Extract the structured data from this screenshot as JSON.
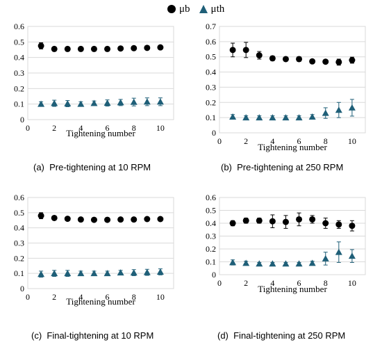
{
  "legend": {
    "items": [
      {
        "label": "μb",
        "marker": "circle",
        "color": "#000000"
      },
      {
        "label": "μth",
        "marker": "triangle",
        "color": "#1f5f78"
      }
    ]
  },
  "captions": {
    "a": "(a)  Pre-tightening at 10 RPM",
    "b": "(b)  Pre-tightening at 250 RPM",
    "c": "(c)  Final-tightening at 10 RPM",
    "d": "(d)  Final-tightening at 250 RPM"
  },
  "chart_data": [
    {
      "id": "a",
      "type": "scatter",
      "caption": "(a)  Pre-tightening at 10 RPM",
      "xlabel": "Tightening number",
      "ylabel": "",
      "xlim": [
        0,
        11
      ],
      "ylim": [
        0,
        0.6
      ],
      "xticks": [
        0,
        2,
        4,
        6,
        8,
        10
      ],
      "yticks": [
        0,
        0.1,
        0.2,
        0.3,
        0.4,
        0.5,
        0.6
      ],
      "grid": true,
      "x": [
        1,
        2,
        3,
        4,
        5,
        6,
        7,
        8,
        9,
        10
      ],
      "series": [
        {
          "name": "μb",
          "marker": "circle",
          "color": "#000000",
          "values": [
            0.475,
            0.455,
            0.455,
            0.455,
            0.455,
            0.455,
            0.458,
            0.46,
            0.462,
            0.465
          ],
          "errors": [
            0.02,
            0.01,
            0.008,
            0.008,
            0.008,
            0.008,
            0.008,
            0.01,
            0.012,
            0.012
          ]
        },
        {
          "name": "μth",
          "marker": "triangle",
          "color": "#1f5f78",
          "values": [
            0.1,
            0.105,
            0.103,
            0.1,
            0.105,
            0.107,
            0.11,
            0.113,
            0.115,
            0.115
          ],
          "errors": [
            0.015,
            0.02,
            0.02,
            0.015,
            0.015,
            0.02,
            0.02,
            0.025,
            0.025,
            0.025
          ]
        }
      ]
    },
    {
      "id": "b",
      "type": "scatter",
      "caption": "(b)  Pre-tightening at 250 RPM",
      "xlabel": "Tightening number",
      "ylabel": "",
      "xlim": [
        0,
        11
      ],
      "ylim": [
        0,
        0.7
      ],
      "xticks": [
        0,
        2,
        4,
        6,
        8,
        10
      ],
      "yticks": [
        0,
        0.1,
        0.2,
        0.3,
        0.4,
        0.5,
        0.6,
        0.7
      ],
      "grid": true,
      "x": [
        1,
        2,
        3,
        4,
        5,
        6,
        7,
        8,
        9,
        10
      ],
      "series": [
        {
          "name": "μb",
          "marker": "circle",
          "color": "#000000",
          "values": [
            0.545,
            0.545,
            0.51,
            0.49,
            0.485,
            0.485,
            0.47,
            0.468,
            0.465,
            0.478
          ],
          "errors": [
            0.045,
            0.05,
            0.025,
            0.015,
            0.01,
            0.015,
            0.01,
            0.01,
            0.02,
            0.02
          ]
        },
        {
          "name": "μth",
          "marker": "triangle",
          "color": "#1f5f78",
          "values": [
            0.105,
            0.1,
            0.1,
            0.1,
            0.1,
            0.1,
            0.105,
            0.13,
            0.15,
            0.165
          ],
          "errors": [
            0.015,
            0.012,
            0.012,
            0.012,
            0.012,
            0.012,
            0.015,
            0.035,
            0.05,
            0.055
          ]
        }
      ]
    },
    {
      "id": "c",
      "type": "scatter",
      "caption": "(c)  Final-tightening at 10 RPM",
      "xlabel": "Tightening number",
      "ylabel": "",
      "xlim": [
        0,
        11
      ],
      "ylim": [
        0,
        0.6
      ],
      "xticks": [
        0,
        2,
        4,
        6,
        8,
        10
      ],
      "yticks": [
        0,
        0.1,
        0.2,
        0.3,
        0.4,
        0.5,
        0.6
      ],
      "grid": true,
      "x": [
        1,
        2,
        3,
        4,
        5,
        6,
        7,
        8,
        9,
        10
      ],
      "series": [
        {
          "name": "μb",
          "marker": "circle",
          "color": "#000000",
          "values": [
            0.48,
            0.465,
            0.46,
            0.455,
            0.453,
            0.453,
            0.455,
            0.455,
            0.458,
            0.458
          ],
          "errors": [
            0.02,
            0.01,
            0.008,
            0.008,
            0.008,
            0.008,
            0.008,
            0.008,
            0.01,
            0.01
          ]
        },
        {
          "name": "μth",
          "marker": "triangle",
          "color": "#1f5f78",
          "values": [
            0.095,
            0.1,
            0.1,
            0.1,
            0.1,
            0.1,
            0.105,
            0.105,
            0.107,
            0.11
          ],
          "errors": [
            0.02,
            0.02,
            0.02,
            0.015,
            0.015,
            0.015,
            0.015,
            0.02,
            0.02,
            0.02
          ]
        }
      ]
    },
    {
      "id": "d",
      "type": "scatter",
      "caption": "(d)  Final-tightening at 250 RPM",
      "xlabel": "Tightening number",
      "ylabel": "",
      "xlim": [
        0,
        11
      ],
      "ylim": [
        0,
        0.6
      ],
      "xticks": [
        0,
        2,
        4,
        6,
        8,
        10
      ],
      "yticks": [
        0,
        0.1,
        0.2,
        0.3,
        0.4,
        0.5,
        0.6
      ],
      "grid": true,
      "x": [
        1,
        2,
        3,
        4,
        5,
        6,
        7,
        8,
        9,
        10
      ],
      "series": [
        {
          "name": "μb",
          "marker": "circle",
          "color": "#000000",
          "values": [
            0.4,
            0.42,
            0.42,
            0.415,
            0.41,
            0.43,
            0.43,
            0.4,
            0.39,
            0.38
          ],
          "errors": [
            0.02,
            0.02,
            0.02,
            0.05,
            0.05,
            0.05,
            0.03,
            0.04,
            0.03,
            0.04
          ]
        },
        {
          "name": "μth",
          "marker": "triangle",
          "color": "#1f5f78",
          "values": [
            0.095,
            0.09,
            0.085,
            0.085,
            0.085,
            0.085,
            0.09,
            0.125,
            0.175,
            0.145
          ],
          "errors": [
            0.02,
            0.015,
            0.01,
            0.01,
            0.01,
            0.01,
            0.015,
            0.05,
            0.08,
            0.05
          ]
        }
      ]
    }
  ]
}
